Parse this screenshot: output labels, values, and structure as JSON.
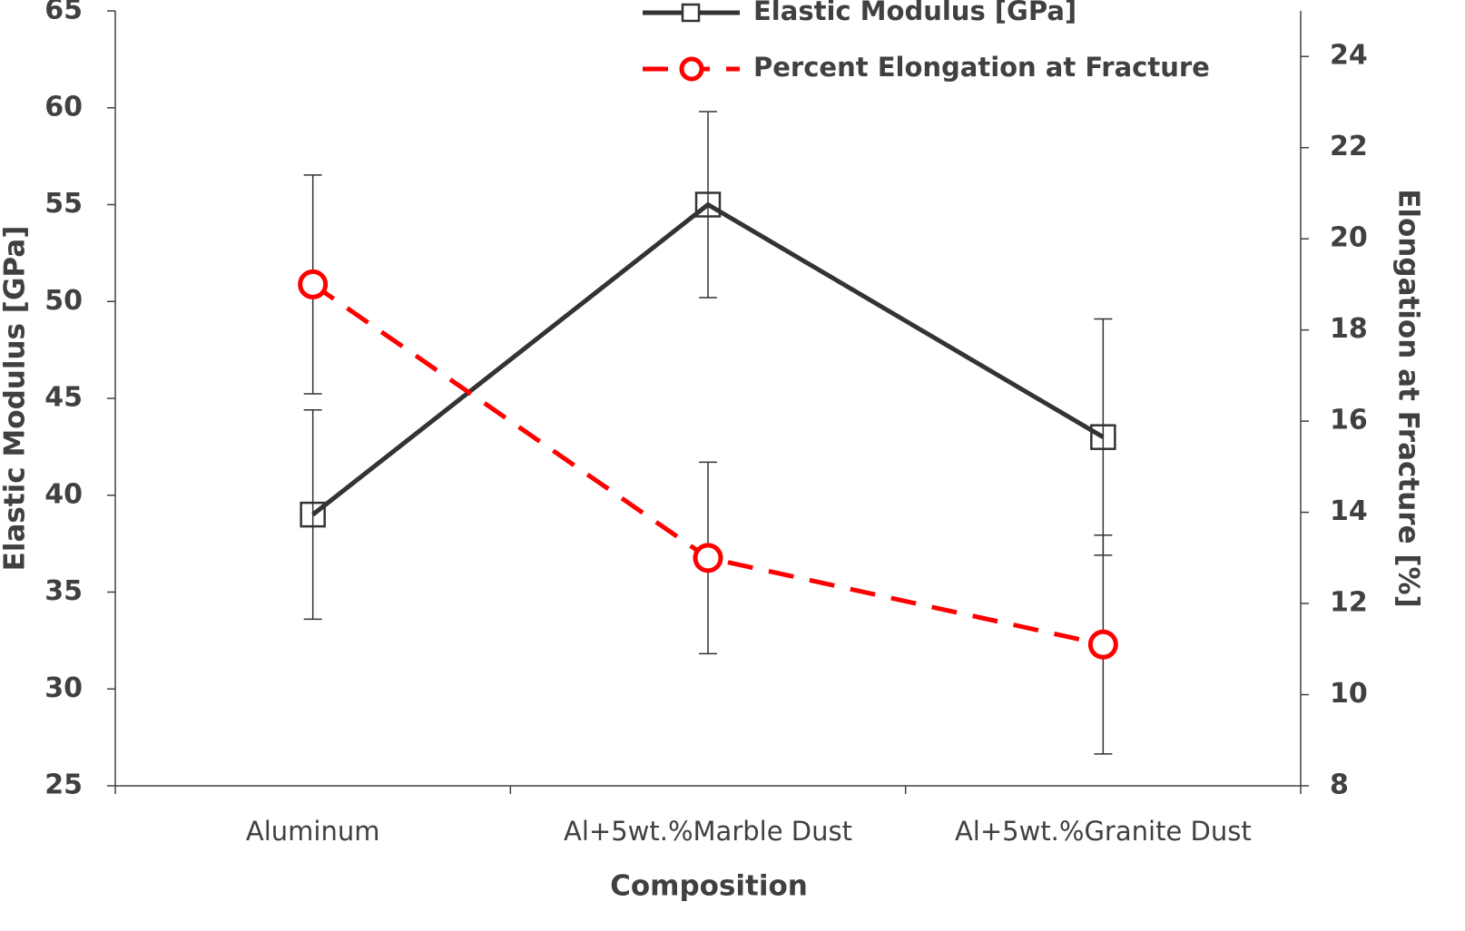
{
  "chart_data": {
    "type": "line",
    "xlabel": "Composition",
    "ylabel": "Elastic Modulus [GPa]",
    "y2label": "Elongation at Fracture [%]",
    "categories": [
      "Aluminum",
      "Al+5wt.%Marble Dust",
      "Al+5wt.%Granite Dust"
    ],
    "series": [
      {
        "name": "Elastic Modulus [GPa]",
        "color": "#333333",
        "marker": "square",
        "dash": false,
        "axis": "y",
        "values": [
          39,
          55,
          43
        ],
        "errors": [
          5.4,
          4.8,
          6.1
        ]
      },
      {
        "name": "Percent Elongation at Fracture",
        "color": "#ff0000",
        "marker": "circle",
        "dash": true,
        "axis": "y2",
        "values": [
          19,
          13,
          11.1
        ],
        "errors": [
          2.4,
          2.1,
          2.4
        ]
      }
    ],
    "ylim": [
      25,
      65
    ],
    "yticks": [
      25,
      30,
      35,
      40,
      45,
      50,
      55,
      60,
      65
    ],
    "y2lim": [
      8,
      25
    ],
    "y2ticks": [
      8,
      10,
      12,
      14,
      16,
      18,
      20,
      22,
      24
    ]
  }
}
